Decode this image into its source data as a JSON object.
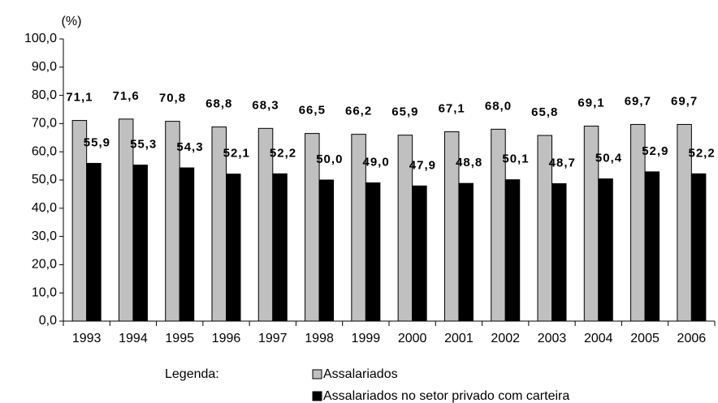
{
  "chart_data": {
    "type": "bar",
    "y_label": "(%)",
    "legend_title": "Legenda:",
    "categories": [
      "1993",
      "1994",
      "1995",
      "1996",
      "1997",
      "1998",
      "1999",
      "2000",
      "2001",
      "2002",
      "2003",
      "2004",
      "2005",
      "2006"
    ],
    "series": [
      {
        "name": "Assalariados",
        "color": "#c0c0c0",
        "values": [
          71.1,
          71.6,
          70.8,
          68.8,
          68.3,
          66.5,
          66.2,
          65.9,
          67.1,
          68.0,
          65.8,
          69.1,
          69.7,
          69.7
        ],
        "value_labels": [
          "71,1",
          "71,6",
          "70,8",
          "68,8",
          "68,3",
          "66,5",
          "66,2",
          "65,9",
          "67,1",
          "68,0",
          "65,8",
          "69,1",
          "69,7",
          "69,7"
        ]
      },
      {
        "name": "Assalariados no setor privado com carteira",
        "color": "#000000",
        "values": [
          55.9,
          55.3,
          54.3,
          52.1,
          52.2,
          50.0,
          49.0,
          47.9,
          48.8,
          50.1,
          48.7,
          50.4,
          52.9,
          52.2
        ],
        "value_labels": [
          "55,9",
          "55,3",
          "54,3",
          "52,1",
          "52,2",
          "50,0",
          "49,0",
          "47,9",
          "48,8",
          "50,1",
          "48,7",
          "50,4",
          "52,9",
          "52,2"
        ]
      }
    ],
    "ylim": [
      0,
      100
    ],
    "yticks": [
      {
        "value": 0,
        "label": "0,0"
      },
      {
        "value": 10,
        "label": "10,0"
      },
      {
        "value": 20,
        "label": "20,0"
      },
      {
        "value": 30,
        "label": "30,0"
      },
      {
        "value": 40,
        "label": "40,0"
      },
      {
        "value": 50,
        "label": "50,0"
      },
      {
        "value": 60,
        "label": "60,0"
      },
      {
        "value": 70,
        "label": "70,0"
      },
      {
        "value": 80,
        "label": "80,0"
      },
      {
        "value": 90,
        "label": "90,0"
      },
      {
        "value": 100,
        "label": "100,0"
      }
    ],
    "grid": false
  }
}
